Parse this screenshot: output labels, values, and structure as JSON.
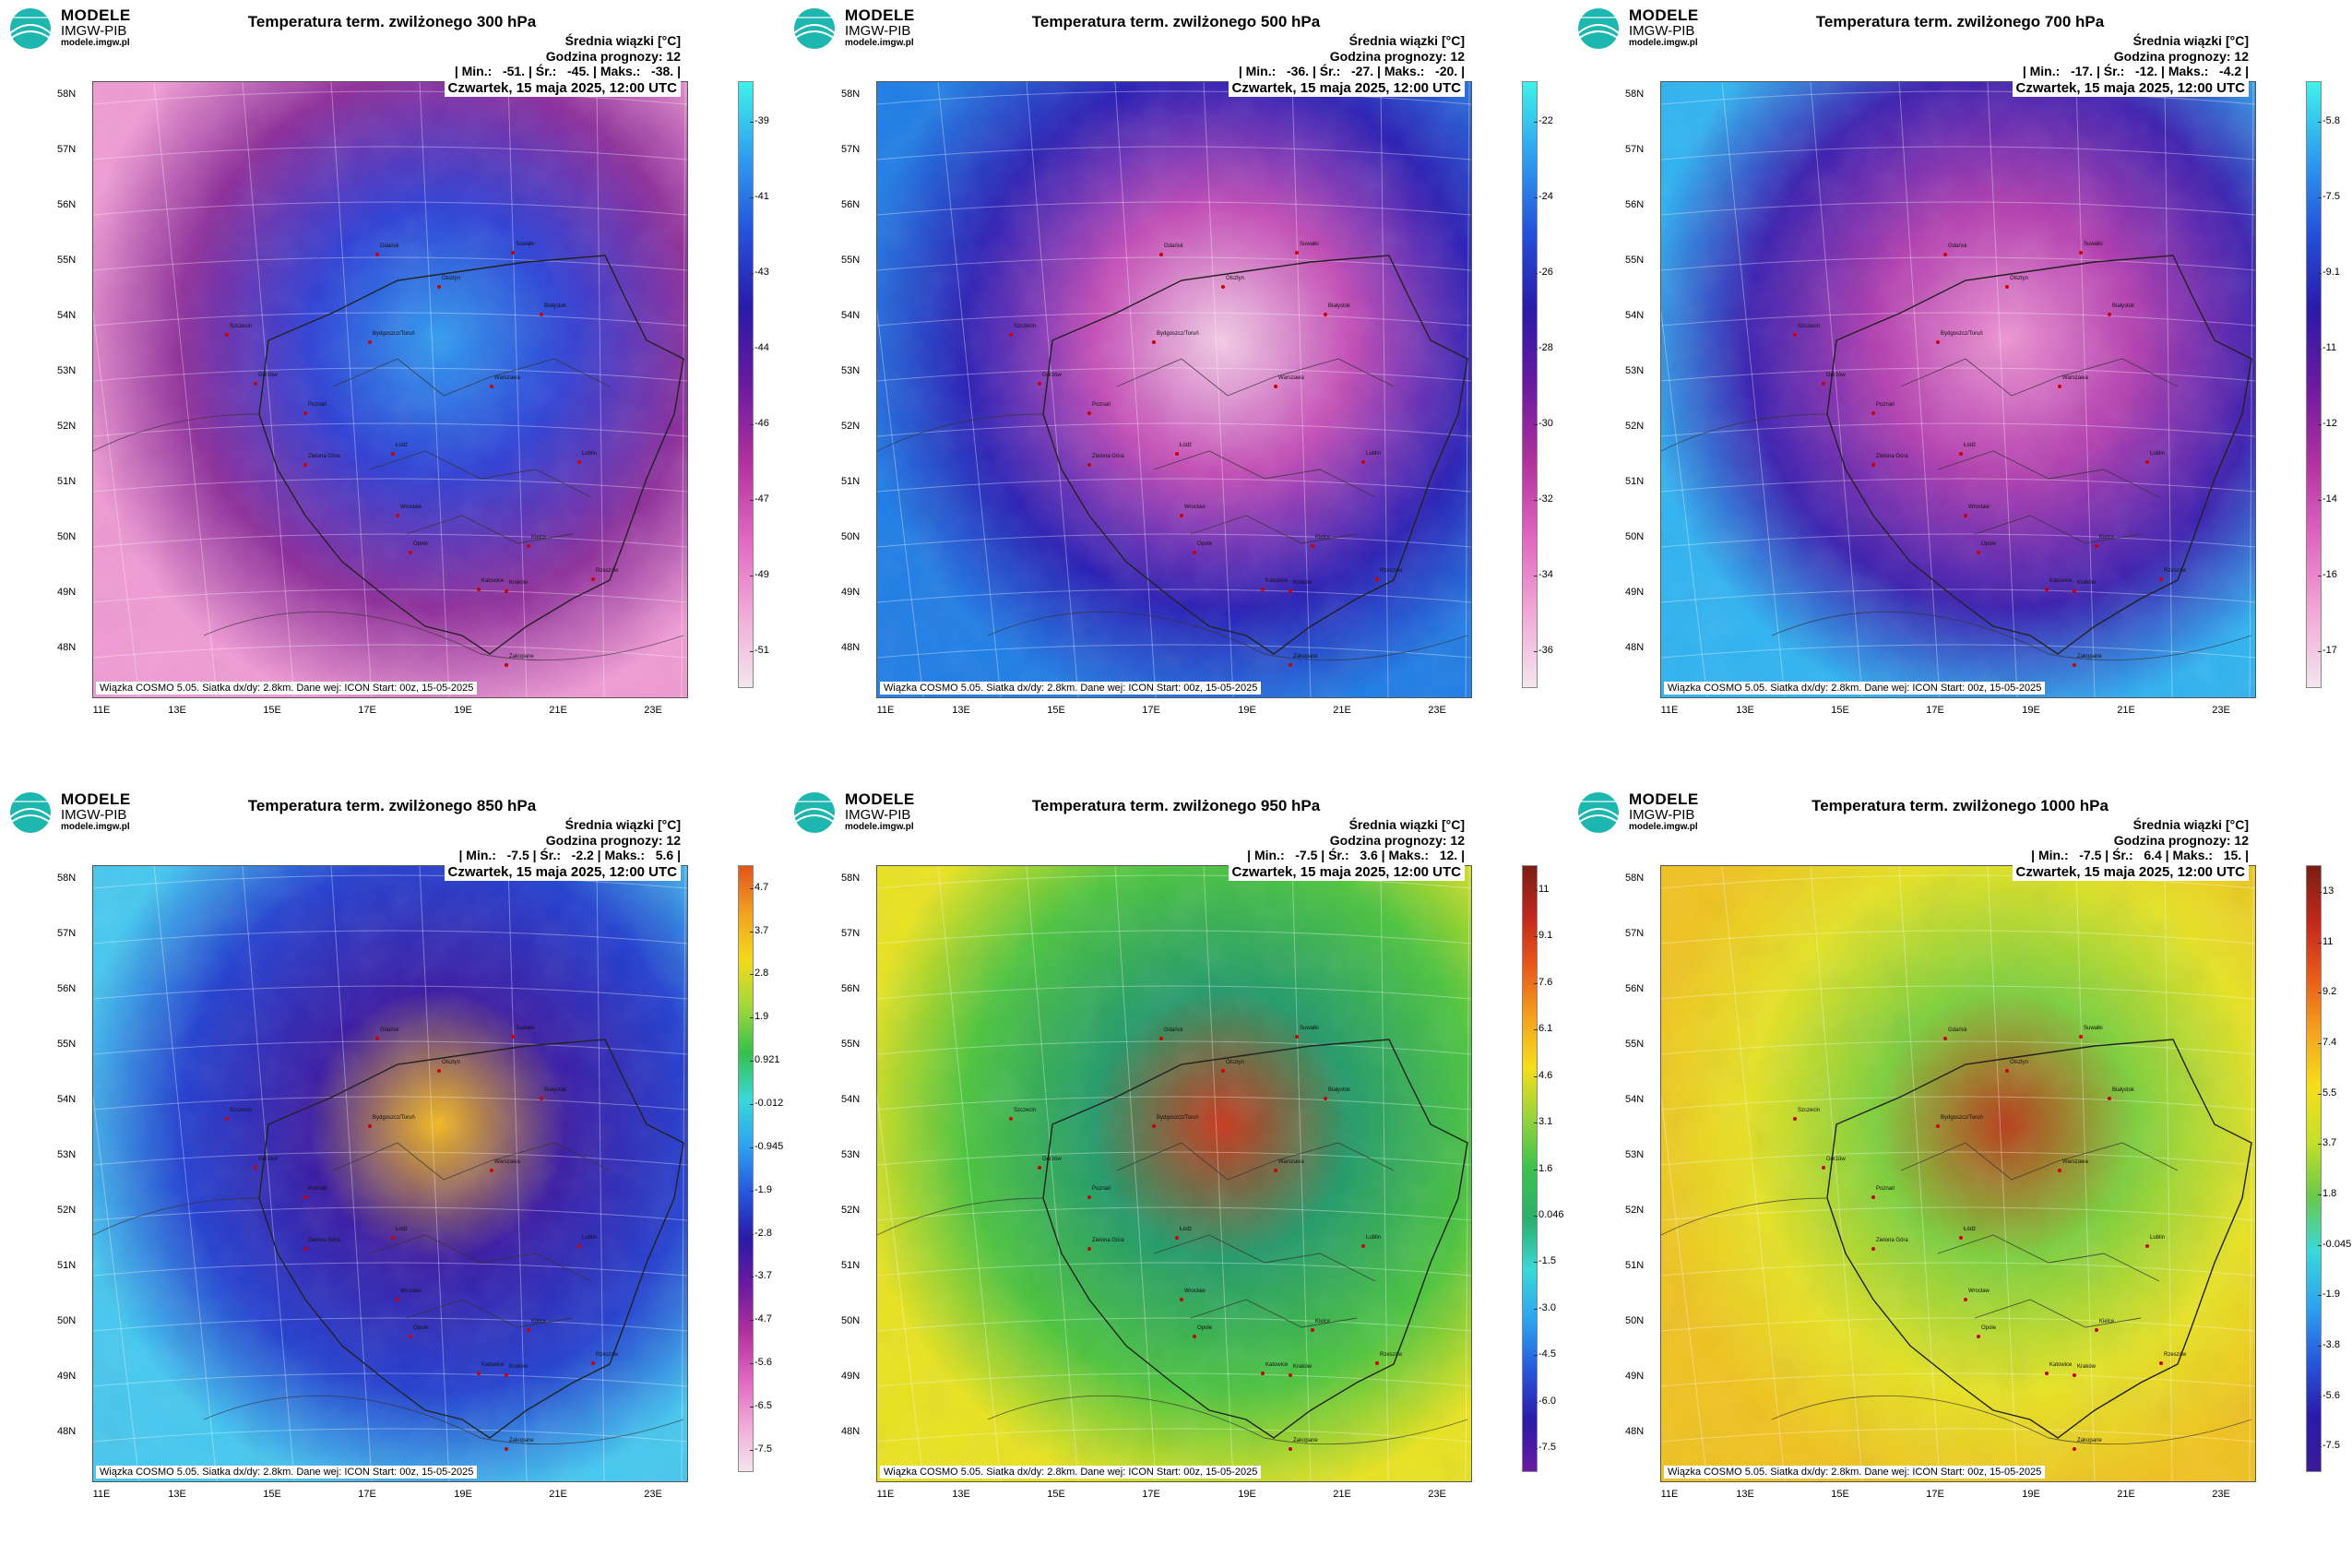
{
  "header": {
    "brand_line1": "MODELE",
    "brand_line2": "IMGW-PIB",
    "brand_line3": "modele.imgw.pl"
  },
  "common": {
    "info_line1": "Średnia wiązki [°C]",
    "info_line2": "Godzina prognozy: 12",
    "date": "Czwartek, 15 maja 2025, 12:00 UTC",
    "footer": "Wiązka COSMO 5.05. Siatka dx/dy: 2.8km. Dane wej: ICON Start: 00z, 15-05-2025",
    "lat_labels": [
      "58N",
      "57N",
      "56N",
      "55N",
      "54N",
      "53N",
      "52N",
      "51N",
      "50N",
      "49N",
      "48N"
    ],
    "lon_labels": [
      "11E",
      "13E",
      "15E",
      "17E",
      "19E",
      "21E",
      "23E"
    ],
    "cities": [
      "Gdańsk",
      "Suwałki",
      "Olsztyn",
      "Białystok",
      "Szczecin",
      "Bydgoszcz/Toruń",
      "Gorzów",
      "Poznań",
      "Warszawa",
      "Zielona Góra",
      "Łódź",
      "Lublin",
      "Wrocław",
      "Opole",
      "Kielce",
      "Katowice",
      "Kraków",
      "Rzeszów",
      "Zakopane"
    ]
  },
  "panels": [
    {
      "title": "Temperatura term. zwilżonego 300 hPa",
      "stats": "| Min.:   -51. | Śr.:   -45. | Maks.:   -38. |",
      "colorbar_ticks": [
        "-39",
        "-41",
        "-43",
        "-44",
        "-46",
        "-47",
        "-49",
        "-51"
      ],
      "colorbar_colors": [
        "#3ff2ea",
        "#2e9df0",
        "#2451d9",
        "#2a1aa8",
        "#6a1aa0",
        "#b0309e",
        "#e065c0",
        "#f1a8d6",
        "#f3e6ee"
      ],
      "map_colors": [
        "#f09bd4",
        "#8e2d9b",
        "#2e3fd6",
        "#2f9cf0"
      ]
    },
    {
      "title": "Temperatura term. zwilżonego 500 hPa",
      "stats": "| Min.:   -36. | Śr.:   -27. | Maks.:   -20. |",
      "colorbar_ticks": [
        "-22",
        "-24",
        "-26",
        "-28",
        "-30",
        "-32",
        "-34",
        "-36"
      ],
      "colorbar_colors": [
        "#3ff2ea",
        "#2e9df0",
        "#2451d9",
        "#2a1aa8",
        "#6a1aa0",
        "#b0309e",
        "#e065c0",
        "#f1a8d6",
        "#f3e6ee"
      ],
      "map_colors": [
        "#1f7de6",
        "#2b1fb5",
        "#c44cb7",
        "#f3cde6"
      ]
    },
    {
      "title": "Temperatura term. zwilżonego 700 hPa",
      "stats": "| Min.:   -17. | Śr.:   -12. | Maks.:   -4.2 |",
      "colorbar_ticks": [
        "-5.8",
        "-7.5",
        "-9.1",
        "-11",
        "-12",
        "-14",
        "-16",
        "-17"
      ],
      "colorbar_colors": [
        "#3ff2ea",
        "#2e9df0",
        "#2451d9",
        "#2a1aa8",
        "#6a1aa0",
        "#b0309e",
        "#e065c0",
        "#f1a8d6",
        "#f3e6ee"
      ],
      "map_colors": [
        "#2fb3f2",
        "#3b1fb0",
        "#b33eb0",
        "#ee95d3"
      ]
    },
    {
      "title": "Temperatura term. zwilżonego 850 hPa",
      "stats": "| Min.:   -7.5 | Śr.:   -2.2 | Maks.:   5.6 |",
      "colorbar_ticks": [
        "4.7",
        "3.7",
        "2.8",
        "1.9",
        "0.921",
        "-0.012",
        "-0.945",
        "-1.9",
        "-2.8",
        "-3.7",
        "-4.7",
        "-5.6",
        "-6.5",
        "-7.5"
      ],
      "colorbar_colors": [
        "#e2541a",
        "#f2a020",
        "#f5d81a",
        "#a4d83a",
        "#35c04a",
        "#3ad8d8",
        "#2ea3f0",
        "#2658dc",
        "#2a1aa8",
        "#6a1aa0",
        "#b0309e",
        "#e065c0",
        "#f1a8d6",
        "#f3e6ee"
      ],
      "map_colors": [
        "#45c8f0",
        "#2340d0",
        "#3a1aa4",
        "#f4b81c"
      ]
    },
    {
      "title": "Temperatura term. zwilżonego 950 hPa",
      "stats": "| Min.:   -7.5 | Śr.:   3.6 | Maks.:   12. |",
      "colorbar_ticks": [
        "11",
        "9.1",
        "7.6",
        "6.1",
        "4.6",
        "3.1",
        "1.6",
        "0.046",
        "-1.5",
        "-3.0",
        "-4.5",
        "-6.0",
        "-7.5"
      ],
      "colorbar_colors": [
        "#7a1e14",
        "#c0281c",
        "#e8591a",
        "#f4a21e",
        "#f6de1a",
        "#96d43c",
        "#3cc24e",
        "#2ab06c",
        "#3ad8d8",
        "#2ea3f0",
        "#2658dc",
        "#2a1aa8",
        "#6a1aa0"
      ],
      "map_colors": [
        "#e9e31f",
        "#4cc43f",
        "#229a6a",
        "#c8361a"
      ]
    },
    {
      "title": "Temperatura term. zwilżonego 1000 hPa",
      "stats": "| Min.:   -7.5 | Śr.:   6.4 | Maks.:   15. |",
      "colorbar_ticks": [
        "13",
        "11",
        "9.2",
        "7.4",
        "5.5",
        "3.7",
        "1.8",
        "-0.045",
        "-1.9",
        "-3.8",
        "-5.6",
        "-7.5"
      ],
      "colorbar_colors": [
        "#7a1e14",
        "#c0281c",
        "#e8591a",
        "#f4a21e",
        "#f6de1a",
        "#c5e028",
        "#6bc84a",
        "#3ad8d8",
        "#2ea3f0",
        "#2658dc",
        "#2a1aa8",
        "#3a1a98"
      ],
      "map_colors": [
        "#f0c21e",
        "#e6e224",
        "#7ccf3c",
        "#b83c1a"
      ]
    }
  ]
}
